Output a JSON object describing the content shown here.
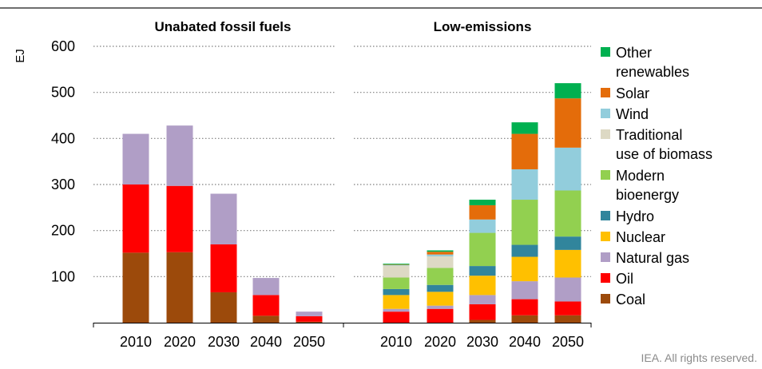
{
  "chart_data": {
    "type": "bar",
    "stacked": true,
    "y_unit": "EJ",
    "ylim": [
      0,
      600
    ],
    "yticks": [
      100,
      200,
      300,
      400,
      500,
      600
    ],
    "grid": "horizontal dotted",
    "legend_position": "right",
    "panels": [
      {
        "title": "Unabated fossil fuels",
        "categories": [
          "2010",
          "2020",
          "2030",
          "2040",
          "2050"
        ],
        "series": [
          {
            "name": "Coal",
            "color": "#9c4a0b",
            "values": [
              152,
              153,
              66,
              15,
              2
            ]
          },
          {
            "name": "Oil",
            "color": "#ff0000",
            "values": [
              148,
              144,
              104,
              45,
              12
            ]
          },
          {
            "name": "Natural gas",
            "color": "#b09ec6",
            "values": [
              110,
              131,
              110,
              37,
              10
            ]
          }
        ]
      },
      {
        "title": "Low-emissions",
        "categories": [
          "2010",
          "2020",
          "2030",
          "2040",
          "2050"
        ],
        "series": [
          {
            "name": "Coal",
            "color": "#9c4a0b",
            "values": [
              0,
              0,
              6,
              16,
              16
            ]
          },
          {
            "name": "Oil",
            "color": "#ff0000",
            "values": [
              24,
              30,
              34,
              35,
              30
            ]
          },
          {
            "name": "Natural gas",
            "color": "#b09ec6",
            "values": [
              6,
              7,
              20,
              39,
              52
            ]
          },
          {
            "name": "Nuclear",
            "color": "#ffc000",
            "values": [
              30,
              30,
              42,
              53,
              60
            ]
          },
          {
            "name": "Hydro",
            "color": "#31859c",
            "values": [
              13,
              15,
              21,
              26,
              29
            ]
          },
          {
            "name": "Modern bioenergy",
            "color": "#92d050",
            "values": [
              25,
              37,
              72,
              98,
              100
            ]
          },
          {
            "name": "Traditional use of biomass",
            "color": "#ddd9c4",
            "values": [
              26,
              25,
              0,
              0,
              0
            ]
          },
          {
            "name": "Wind",
            "color": "#92cddc",
            "values": [
              1,
              4,
              29,
              66,
              93
            ]
          },
          {
            "name": "Solar",
            "color": "#e46c0a",
            "values": [
              1,
              6,
              31,
              77,
              107
            ]
          },
          {
            "name": "Other renewables",
            "color": "#00b050",
            "values": [
              2,
              3,
              12,
              25,
              33
            ]
          }
        ]
      }
    ],
    "legend": [
      {
        "name": "Other renewables",
        "lines": [
          "Other",
          "renewables"
        ],
        "color": "#00b050"
      },
      {
        "name": "Solar",
        "lines": [
          "Solar"
        ],
        "color": "#e46c0a"
      },
      {
        "name": "Wind",
        "lines": [
          "Wind"
        ],
        "color": "#92cddc"
      },
      {
        "name": "Traditional use of biomass",
        "lines": [
          "Traditional",
          "use of biomass"
        ],
        "color": "#ddd9c4"
      },
      {
        "name": "Modern bioenergy",
        "lines": [
          "Modern",
          "bioenergy"
        ],
        "color": "#92d050"
      },
      {
        "name": "Hydro",
        "lines": [
          "Hydro"
        ],
        "color": "#31859c"
      },
      {
        "name": "Nuclear",
        "lines": [
          "Nuclear"
        ],
        "color": "#ffc000"
      },
      {
        "name": "Natural gas",
        "lines": [
          "Natural gas"
        ],
        "color": "#b09ec6"
      },
      {
        "name": "Oil",
        "lines": [
          "Oil"
        ],
        "color": "#ff0000"
      },
      {
        "name": "Coal",
        "lines": [
          "Coal"
        ],
        "color": "#9c4a0b"
      }
    ]
  },
  "footer": "IEA. All rights reserved."
}
